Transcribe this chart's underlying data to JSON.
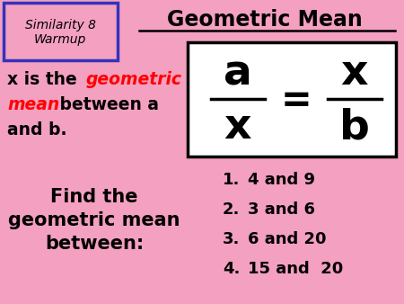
{
  "bg_color": "#F4A0C0",
  "title": "Geometric Mean",
  "title_color": "#000000",
  "similarity_text": "Similarity 8\nWarmup",
  "find_text": "Find the\ngeometric mean\nbetween:",
  "items": [
    "4 and 9",
    "3 and 6",
    "6 and 20",
    "15 and  20"
  ],
  "formula_box_facecolor": "#FFFFFF",
  "formula_box_edgecolor": "#000000",
  "sim_box_edgecolor": "#3333BB",
  "underline_color": "#000000",
  "text_black": "#000000",
  "text_red": "#FF0000"
}
